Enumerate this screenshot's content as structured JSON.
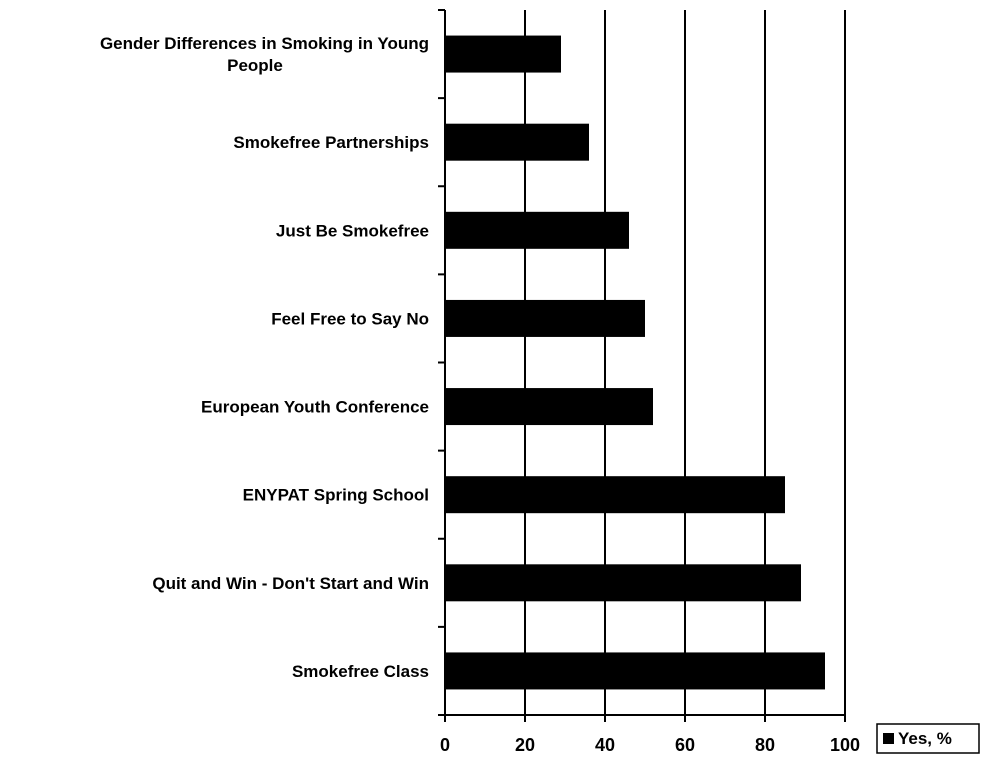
{
  "chart_data": {
    "type": "bar",
    "orientation": "horizontal",
    "categories": [
      [
        "Gender Differences in Smoking in Young",
        "People"
      ],
      [
        "Smokefree Partnerships"
      ],
      [
        "Just Be Smokefree"
      ],
      [
        "Feel Free to Say No"
      ],
      [
        "European Youth Conference"
      ],
      [
        "ENYPAT Spring School"
      ],
      [
        "Quit and Win - Don't Start and Win"
      ],
      [
        "Smokefree Class"
      ]
    ],
    "series": [
      {
        "name": "Yes, %",
        "values": [
          29,
          36,
          46,
          50,
          52,
          85,
          89,
          95
        ],
        "color": "#000000"
      }
    ],
    "xlim": [
      0,
      100
    ],
    "x_ticks": [
      0,
      20,
      40,
      60,
      80,
      100
    ],
    "x_tick_labels": [
      "0",
      "20",
      "40",
      "60",
      "80",
      "100"
    ],
    "grid": "vertical",
    "legend_position": "bottom-right",
    "title": "",
    "xlabel": "",
    "ylabel": ""
  }
}
